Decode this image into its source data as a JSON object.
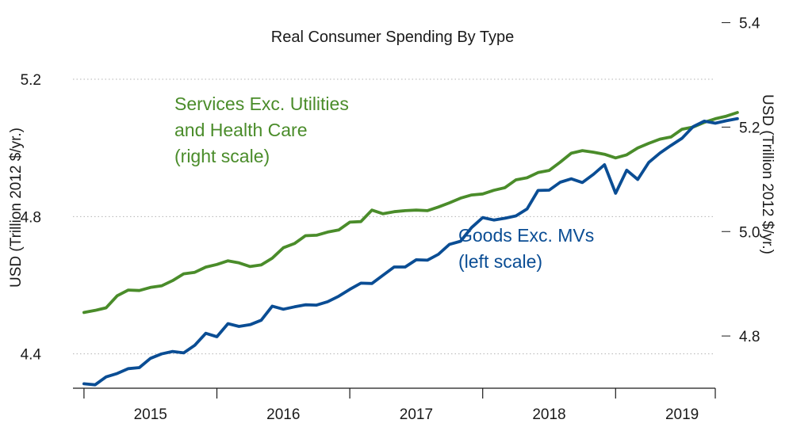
{
  "chart_data": {
    "type": "line",
    "title": "Real Consumer Spending By Type",
    "xlabel": "",
    "x_tick_labels": [
      "2015",
      "2016",
      "2017",
      "2018",
      "2019"
    ],
    "x_range": [
      2014.917,
      2019.75
    ],
    "left_axis": {
      "label": "USD (Trillion 2012 $/yr.)",
      "ylim": [
        4.3,
        5.38
      ],
      "ticks": [
        4.4,
        4.8,
        5.2
      ],
      "tick_labels": [
        "4.4",
        "4.8",
        "5.2"
      ]
    },
    "right_axis": {
      "label": "USD (Trillion 2012 $/yr.)",
      "ylim": [
        4.7,
        5.41
      ],
      "ticks": [
        4.8,
        5.0,
        5.2,
        5.4
      ],
      "tick_labels": [
        "4.8",
        "5.0",
        "5.2",
        "5.4"
      ]
    },
    "x_start": 2015.0,
    "x_step": 0.0833333,
    "series": [
      {
        "name": "Services Exc. Utilities and Health Care",
        "axis": "right",
        "color": "#4a8c2a",
        "annotation": [
          "Services Exc. Utilities",
          "and Health Care",
          "(right scale)"
        ],
        "values": [
          4.845,
          4.849,
          4.854,
          4.877,
          4.888,
          4.887,
          4.893,
          4.896,
          4.906,
          4.919,
          4.922,
          4.932,
          4.937,
          4.944,
          4.94,
          4.933,
          4.936,
          4.949,
          4.969,
          4.977,
          4.992,
          4.993,
          4.999,
          5.003,
          5.018,
          5.019,
          5.041,
          5.034,
          5.038,
          5.04,
          5.041,
          5.04,
          5.047,
          5.055,
          5.064,
          5.07,
          5.072,
          5.079,
          5.084,
          5.099,
          5.103,
          5.113,
          5.117,
          5.133,
          5.15,
          5.155,
          5.152,
          5.148,
          5.141,
          5.147,
          5.16,
          5.169,
          5.177,
          5.181,
          5.196,
          5.2,
          5.209,
          5.216,
          5.221,
          5.228
        ]
      },
      {
        "name": "Goods Exc. MVs",
        "axis": "left",
        "color": "#0a4d94",
        "annotation": [
          "Goods Exc. MVs",
          "(left scale)"
        ],
        "values": [
          4.313,
          4.31,
          4.333,
          4.343,
          4.357,
          4.36,
          4.387,
          4.4,
          4.407,
          4.403,
          4.425,
          4.46,
          4.45,
          4.488,
          4.48,
          4.485,
          4.498,
          4.539,
          4.53,
          4.537,
          4.543,
          4.542,
          4.552,
          4.568,
          4.588,
          4.606,
          4.605,
          4.629,
          4.653,
          4.653,
          4.674,
          4.673,
          4.69,
          4.719,
          4.728,
          4.768,
          4.797,
          4.79,
          4.795,
          4.802,
          4.822,
          4.876,
          4.877,
          4.9,
          4.91,
          4.899,
          4.923,
          4.951,
          4.868,
          4.935,
          4.908,
          4.958,
          4.985,
          5.007,
          5.028,
          5.062,
          5.078,
          5.072,
          5.079,
          5.085
        ]
      }
    ]
  }
}
